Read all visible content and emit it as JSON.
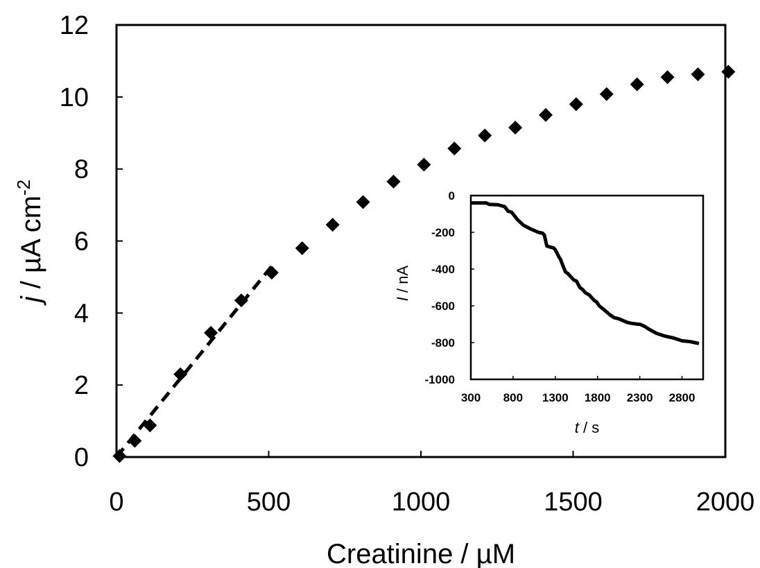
{
  "chart_data": [
    {
      "type": "scatter",
      "xlabel": "Creatinine / µM",
      "ylabel_italic": "j",
      "ylabel_rest": " / µA cm",
      "ylabel_sup": "-2",
      "xlim": [
        0,
        2000
      ],
      "ylim": [
        0,
        12
      ],
      "xticks": [
        0,
        500,
        1000,
        1500,
        2000
      ],
      "yticks": [
        0,
        2,
        4,
        6,
        8,
        10,
        12
      ],
      "grid": false,
      "marker": "diamond",
      "series": [
        {
          "x": [
            10,
            60,
            110,
            210,
            310,
            410,
            510,
            610,
            710,
            810,
            910,
            1010,
            1110,
            1210,
            1310,
            1410,
            1510,
            1610,
            1710,
            1810,
            1910,
            2010
          ],
          "y": [
            0.03,
            0.45,
            0.88,
            2.3,
            3.45,
            4.35,
            5.12,
            5.8,
            6.45,
            7.08,
            7.65,
            8.12,
            8.57,
            8.93,
            9.15,
            9.5,
            9.8,
            10.08,
            10.35,
            10.55,
            10.63,
            10.7
          ]
        }
      ],
      "fit_line": {
        "style": "dashed",
        "x": [
          0,
          510
        ],
        "y": [
          0.0,
          5.3
        ]
      }
    },
    {
      "type": "line",
      "xlabel_italic": "t",
      "xlabel_rest": " / s",
      "ylabel_italic": "I",
      "ylabel_rest": " / nA",
      "xlim": [
        300,
        3050
      ],
      "ylim": [
        -1000,
        0
      ],
      "xticks": [
        300,
        800,
        1300,
        1800,
        2300,
        2800
      ],
      "yticks": [
        0,
        -200,
        -400,
        -600,
        -800,
        -1000
      ],
      "grid": false,
      "series": [
        {
          "x": [
            300,
            400,
            480,
            520,
            620,
            700,
            740,
            780,
            800,
            850,
            920,
            1000,
            1100,
            1150,
            1170,
            1200,
            1240,
            1280,
            1300,
            1350,
            1360,
            1380,
            1420,
            1450,
            1480,
            1520,
            1550,
            1590,
            1620,
            1660,
            1700,
            1760,
            1790,
            1820,
            1860,
            1900,
            1950,
            2000,
            2050,
            2100,
            2150,
            2200,
            2280,
            2300,
            2350,
            2420,
            2500,
            2600,
            2700,
            2800,
            2900,
            2950,
            3000
          ],
          "y": [
            -40,
            -40,
            -40,
            -48,
            -50,
            -60,
            -85,
            -90,
            -100,
            -130,
            -160,
            -180,
            -200,
            -205,
            -215,
            -275,
            -280,
            -285,
            -295,
            -340,
            -345,
            -370,
            -415,
            -425,
            -440,
            -460,
            -465,
            -500,
            -510,
            -530,
            -540,
            -570,
            -580,
            -600,
            -615,
            -630,
            -650,
            -665,
            -670,
            -680,
            -690,
            -695,
            -700,
            -700,
            -710,
            -730,
            -750,
            -765,
            -775,
            -790,
            -795,
            -800,
            -805
          ]
        }
      ]
    }
  ]
}
